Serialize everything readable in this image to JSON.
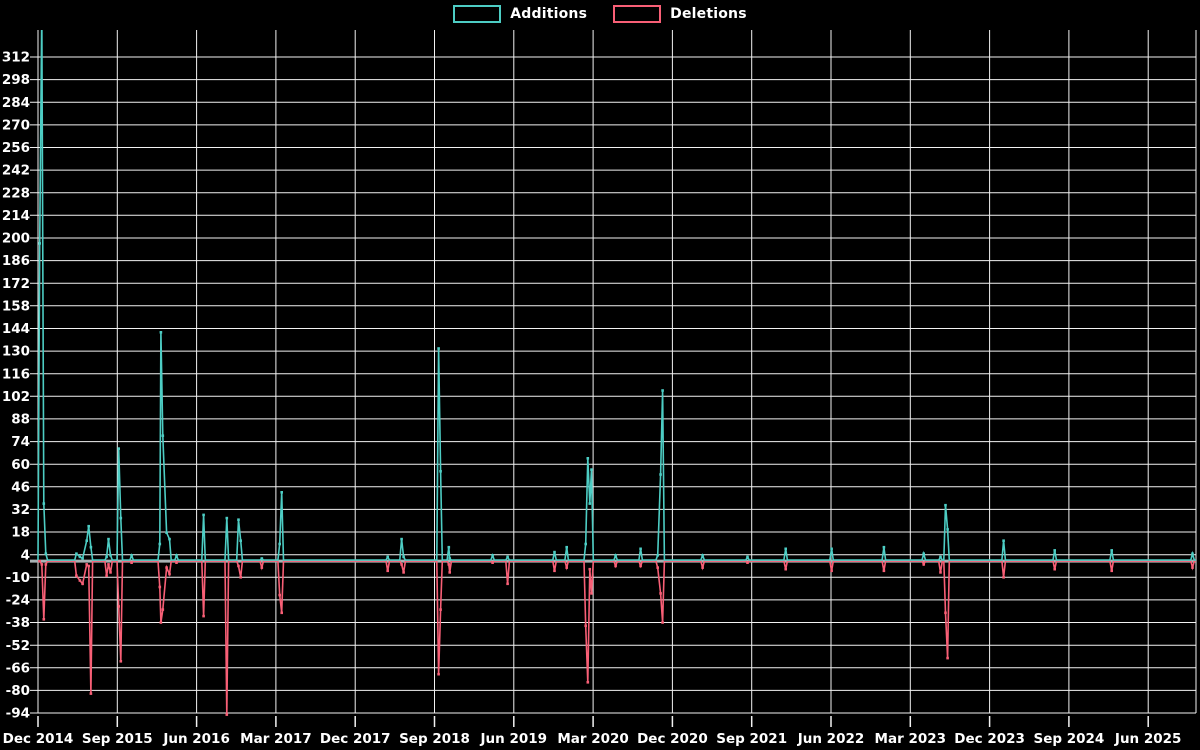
{
  "legend": {
    "additions_label": "Additions",
    "deletions_label": "Deletions"
  },
  "colors": {
    "background": "#000000",
    "grid": "#F2F2F2",
    "zero_line": "#A8B2B4",
    "additions": "#4DCDC4",
    "deletions": "#F85F76",
    "text": "#FFFFFF"
  },
  "chart_data": {
    "type": "line",
    "title": "",
    "legend_position": "top-center",
    "grid": true,
    "x_axis": {
      "tick_labels": [
        "Dec 2014",
        "Sep 2015",
        "Jun 2016",
        "Mar 2017",
        "Dec 2017",
        "Sep 2018",
        "Jun 2019",
        "Mar 2020",
        "Dec 2020",
        "Sep 2021",
        "Jun 2022",
        "Mar 2023",
        "Dec 2023",
        "Sep 2024",
        "Jun 2025"
      ],
      "tick_interval_months": 9
    },
    "y_axis": {
      "min": -94,
      "max": 312,
      "step": 14,
      "axis_top_value": 329,
      "ticks": [
        312,
        298,
        284,
        270,
        256,
        242,
        228,
        214,
        200,
        186,
        172,
        158,
        144,
        130,
        116,
        102,
        88,
        74,
        60,
        46,
        32,
        18,
        4,
        -10,
        -24,
        -38,
        -52,
        -66,
        -80,
        -94
      ]
    },
    "series": [
      {
        "name": "Additions",
        "key": "additions",
        "color": "#4DCDC4"
      },
      {
        "name": "Deletions",
        "key": "deletions",
        "color": "#F85F76"
      }
    ],
    "baseline_value": 0,
    "events": [
      {
        "date": "2014-12-07",
        "additions": 196,
        "deletions": 0
      },
      {
        "date": "2014-12-14",
        "additions": 340,
        "deletions": -2
      },
      {
        "date": "2014-12-21",
        "additions": 35,
        "deletions": -36
      },
      {
        "date": "2014-12-28",
        "additions": 4,
        "deletions": -2
      },
      {
        "date": "2015-04-12",
        "additions": 4,
        "deletions": -9
      },
      {
        "date": "2015-04-24",
        "additions": 2,
        "deletions": -12
      },
      {
        "date": "2015-05-03",
        "additions": 1,
        "deletions": -14
      },
      {
        "date": "2015-05-17",
        "additions": 12,
        "deletions": -2
      },
      {
        "date": "2015-05-24",
        "additions": 21,
        "deletions": -3
      },
      {
        "date": "2015-06-01",
        "additions": 8,
        "deletions": -82
      },
      {
        "date": "2015-07-25",
        "additions": 2,
        "deletions": -9
      },
      {
        "date": "2015-08-01",
        "additions": 13,
        "deletions": -2
      },
      {
        "date": "2015-08-08",
        "additions": 3,
        "deletions": -7
      },
      {
        "date": "2015-09-06",
        "additions": 69,
        "deletions": -28
      },
      {
        "date": "2015-09-13",
        "additions": 26,
        "deletions": -62
      },
      {
        "date": "2015-10-20",
        "additions": 3,
        "deletions": -1
      },
      {
        "date": "2016-01-26",
        "additions": 10,
        "deletions": -16
      },
      {
        "date": "2016-01-30",
        "additions": 141,
        "deletions": -38
      },
      {
        "date": "2016-02-06",
        "additions": 77,
        "deletions": -30
      },
      {
        "date": "2016-02-19",
        "additions": 17,
        "deletions": -4
      },
      {
        "date": "2016-02-29",
        "additions": 13,
        "deletions": -8
      },
      {
        "date": "2016-03-23",
        "additions": 3,
        "deletions": -1
      },
      {
        "date": "2016-06-25",
        "additions": 28,
        "deletions": -34
      },
      {
        "date": "2016-09-14",
        "additions": 26,
        "deletions": -95
      },
      {
        "date": "2016-10-24",
        "additions": 25,
        "deletions": -3
      },
      {
        "date": "2016-11-01",
        "additions": 12,
        "deletions": -10
      },
      {
        "date": "2017-01-13",
        "additions": 1,
        "deletions": -4
      },
      {
        "date": "2017-03-14",
        "additions": 10,
        "deletions": -21
      },
      {
        "date": "2017-03-21",
        "additions": 42,
        "deletions": -32
      },
      {
        "date": "2018-03-22",
        "additions": 2,
        "deletions": -6
      },
      {
        "date": "2018-05-09",
        "additions": 13,
        "deletions": -2
      },
      {
        "date": "2018-05-16",
        "additions": 2,
        "deletions": -7
      },
      {
        "date": "2018-09-15",
        "additions": 131,
        "deletions": -70
      },
      {
        "date": "2018-09-22",
        "additions": 55,
        "deletions": -30
      },
      {
        "date": "2018-10-20",
        "additions": 8,
        "deletions": -2
      },
      {
        "date": "2018-10-23",
        "additions": 1,
        "deletions": -7
      },
      {
        "date": "2019-03-19",
        "additions": 3,
        "deletions": -1
      },
      {
        "date": "2019-05-10",
        "additions": 2,
        "deletions": -14
      },
      {
        "date": "2019-10-20",
        "additions": 5,
        "deletions": -6
      },
      {
        "date": "2019-12-01",
        "additions": 8,
        "deletions": -4
      },
      {
        "date": "2020-02-06",
        "additions": 10,
        "deletions": -40
      },
      {
        "date": "2020-02-13",
        "additions": 63,
        "deletions": -75
      },
      {
        "date": "2020-02-20",
        "additions": 35,
        "deletions": -5
      },
      {
        "date": "2020-02-26",
        "additions": 56,
        "deletions": -20
      },
      {
        "date": "2020-05-18",
        "additions": 3,
        "deletions": -3
      },
      {
        "date": "2020-08-13",
        "additions": 7,
        "deletions": -3
      },
      {
        "date": "2020-10-11",
        "additions": 3,
        "deletions": -4
      },
      {
        "date": "2020-10-21",
        "additions": 53,
        "deletions": -20
      },
      {
        "date": "2020-10-28",
        "additions": 105,
        "deletions": -38
      },
      {
        "date": "2021-03-14",
        "additions": 3,
        "deletions": -4
      },
      {
        "date": "2021-08-17",
        "additions": 2,
        "deletions": -1
      },
      {
        "date": "2021-12-27",
        "additions": 7,
        "deletions": -5
      },
      {
        "date": "2022-06-03",
        "additions": 7,
        "deletions": -6
      },
      {
        "date": "2022-12-01",
        "additions": 8,
        "deletions": -6
      },
      {
        "date": "2023-04-17",
        "additions": 4,
        "deletions": -2
      },
      {
        "date": "2023-06-14",
        "additions": 2,
        "deletions": -7
      },
      {
        "date": "2023-07-01",
        "additions": 34,
        "deletions": -32
      },
      {
        "date": "2023-07-08",
        "additions": 19,
        "deletions": -60
      },
      {
        "date": "2024-01-19",
        "additions": 12,
        "deletions": -10
      },
      {
        "date": "2024-07-13",
        "additions": 6,
        "deletions": -5
      },
      {
        "date": "2025-01-27",
        "additions": 6,
        "deletions": -6
      },
      {
        "date": "2025-11-02",
        "additions": 4,
        "deletions": -4
      }
    ]
  }
}
